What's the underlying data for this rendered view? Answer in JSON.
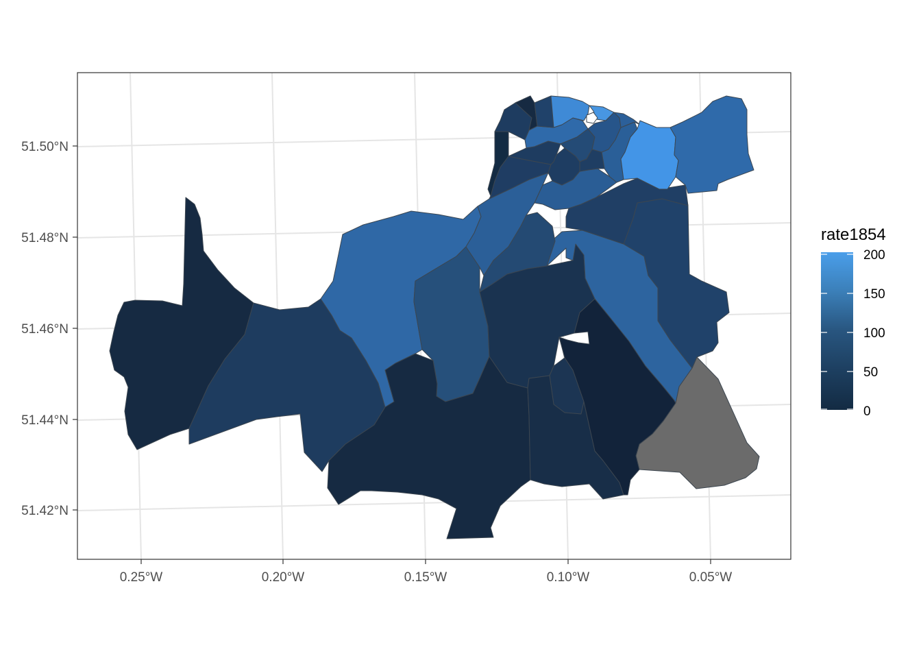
{
  "map": {
    "x_ticks": [
      "0.25°W",
      "0.20°W",
      "0.15°W",
      "0.10°W",
      "0.05°W"
    ],
    "y_ticks": [
      "51.50°N",
      "51.48°N",
      "51.46°N",
      "51.44°N",
      "51.42°N"
    ],
    "panel_background": "#ffffff",
    "grid_color": "#e6e6e6",
    "border_color": "#333333",
    "missing_color": "#6b6b6b"
  },
  "legend": {
    "title": "rate1854",
    "ticks": [
      "200",
      "150",
      "100",
      "50",
      "0"
    ],
    "color_low": "#132b43",
    "color_high": "#56b1f7"
  }
}
